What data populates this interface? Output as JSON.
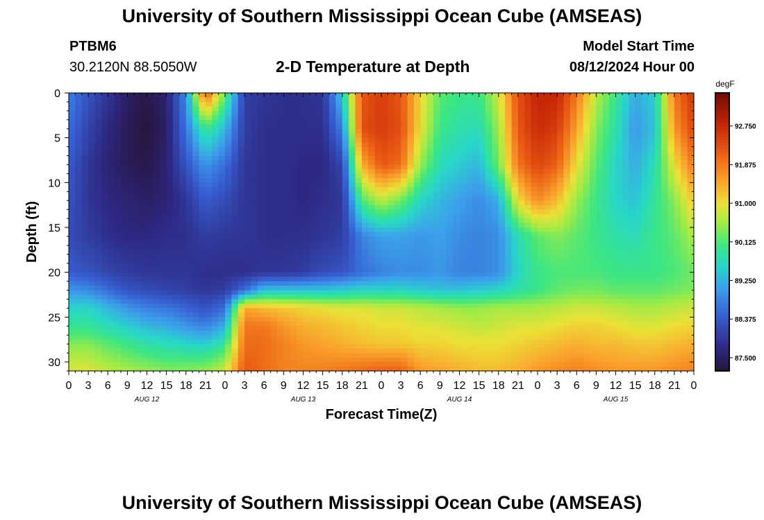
{
  "header": {
    "title": "University of Southern Mississippi Ocean Cube (AMSEAS)",
    "station": "PTBM6",
    "coords": "30.2120N  88.5050W",
    "chart_title": "2-D Temperature at Depth",
    "model_start_label": "Model Start Time",
    "model_start_value": "08/12/2024 Hour 00"
  },
  "footer": {
    "title": "University of Southern Mississippi Ocean Cube (AMSEAS)"
  },
  "chart_data": {
    "type": "heatmap",
    "title": "2-D Temperature at Depth",
    "xlabel": "Forecast Time(Z)",
    "ylabel": "Depth (ft)",
    "x_hours_range": [
      0,
      96
    ],
    "x_tick_step_hours": 3,
    "x_tick_labels": [
      "0",
      "3",
      "6",
      "9",
      "12",
      "15",
      "18",
      "21",
      "0",
      "3",
      "6",
      "9",
      "12",
      "15",
      "18",
      "21",
      "0",
      "3",
      "6",
      "9",
      "12",
      "15",
      "18",
      "21",
      "0",
      "3",
      "6",
      "9",
      "12",
      "15",
      "18",
      "21",
      "0"
    ],
    "day_labels": [
      {
        "label": "AUG 12",
        "hour": 12
      },
      {
        "label": "AUG 13",
        "hour": 36
      },
      {
        "label": "AUG 14",
        "hour": 60
      },
      {
        "label": "AUG 15",
        "hour": 84
      }
    ],
    "y_range_ft": [
      0,
      31
    ],
    "y_ticks": [
      0,
      5,
      10,
      15,
      20,
      25,
      30
    ],
    "colorbar": {
      "unit": "degF",
      "min": 87.2,
      "max": 93.5,
      "ticks": [
        "87.500",
        "88.375",
        "89.250",
        "90.125",
        "91.000",
        "91.875",
        "92.750"
      ],
      "tick_values": [
        87.5,
        88.375,
        89.25,
        90.125,
        91.0,
        91.875,
        92.75
      ]
    },
    "sample_hours": [
      0,
      3,
      6,
      9,
      12,
      15,
      18,
      21,
      24,
      27,
      30,
      33,
      36,
      39,
      42,
      45,
      48,
      51,
      54,
      57,
      60,
      63,
      66,
      69,
      72,
      75,
      78,
      81,
      84,
      87,
      90,
      93,
      96
    ],
    "sample_depths_ft": [
      0,
      4,
      8,
      12,
      16,
      20,
      22,
      24,
      26,
      28,
      31
    ],
    "temperature_degF": [
      [
        88.8,
        88.6,
        88.4,
        88.3,
        88.2,
        88.4,
        89.0,
        89.6,
        89.9,
        90.4,
        90.9
      ],
      [
        88.3,
        88.1,
        87.9,
        87.9,
        88.0,
        88.3,
        88.9,
        89.6,
        89.9,
        90.4,
        90.9
      ],
      [
        87.9,
        87.7,
        87.6,
        87.7,
        87.8,
        88.1,
        88.6,
        89.3,
        89.7,
        90.2,
        90.7
      ],
      [
        87.5,
        87.4,
        87.4,
        87.6,
        87.7,
        88.0,
        88.3,
        89.0,
        89.5,
        90.0,
        90.6
      ],
      [
        87.3,
        87.2,
        87.3,
        87.5,
        87.7,
        87.9,
        88.2,
        88.8,
        89.3,
        89.8,
        90.5
      ],
      [
        87.6,
        87.5,
        87.6,
        87.6,
        87.8,
        87.9,
        88.1,
        88.7,
        89.2,
        89.7,
        90.4
      ],
      [
        88.9,
        88.7,
        88.3,
        87.9,
        87.8,
        87.9,
        88.0,
        88.5,
        89.0,
        89.6,
        90.4
      ],
      [
        92.2,
        90.0,
        89.0,
        88.4,
        88.0,
        87.8,
        87.9,
        88.3,
        88.8,
        89.5,
        90.5
      ],
      [
        90.3,
        89.3,
        88.6,
        88.2,
        87.9,
        87.8,
        88.0,
        88.6,
        89.2,
        89.9,
        90.8
      ],
      [
        88.0,
        88.0,
        87.9,
        87.9,
        87.9,
        87.8,
        88.6,
        91.5,
        91.9,
        92.0,
        92.2
      ],
      [
        87.9,
        87.8,
        87.8,
        87.8,
        87.8,
        87.9,
        89.4,
        91.3,
        91.9,
        92.0,
        92.0
      ],
      [
        87.8,
        87.8,
        87.8,
        87.8,
        87.8,
        87.9,
        89.4,
        91.2,
        91.6,
        91.8,
        91.8
      ],
      [
        87.8,
        87.8,
        87.7,
        87.7,
        87.8,
        88.0,
        89.4,
        91.1,
        91.4,
        91.6,
        91.8
      ],
      [
        87.9,
        87.8,
        87.7,
        87.8,
        87.9,
        88.2,
        89.4,
        91.0,
        91.3,
        91.5,
        91.8
      ],
      [
        89.5,
        88.8,
        88.1,
        87.9,
        88.0,
        88.3,
        89.5,
        90.9,
        91.2,
        91.4,
        91.9
      ],
      [
        92.2,
        92.3,
        91.4,
        90.1,
        88.8,
        88.6,
        89.6,
        90.9,
        91.1,
        91.3,
        92.0
      ],
      [
        92.5,
        92.5,
        92.2,
        90.7,
        89.1,
        88.8,
        89.6,
        90.8,
        91.0,
        91.2,
        92.1
      ],
      [
        92.2,
        92.3,
        92.0,
        90.3,
        89.1,
        88.9,
        89.6,
        90.8,
        91.0,
        91.2,
        92.1
      ],
      [
        91.1,
        91.0,
        90.5,
        89.6,
        89.0,
        88.9,
        89.5,
        90.7,
        90.9,
        91.1,
        91.6
      ],
      [
        90.2,
        90.0,
        89.7,
        89.3,
        89.1,
        89.0,
        89.4,
        90.6,
        90.9,
        91.1,
        91.5
      ],
      [
        90.0,
        89.8,
        89.5,
        89.1,
        88.9,
        88.8,
        89.4,
        90.5,
        90.8,
        91.0,
        91.4
      ],
      [
        90.0,
        89.7,
        89.3,
        88.9,
        88.8,
        88.8,
        89.5,
        90.5,
        90.7,
        91.0,
        91.3
      ],
      [
        90.8,
        90.5,
        90.3,
        89.2,
        88.9,
        88.9,
        89.6,
        90.6,
        90.8,
        91.0,
        91.3
      ],
      [
        92.3,
        92.2,
        91.9,
        91.0,
        89.7,
        89.6,
        89.8,
        90.6,
        90.9,
        91.1,
        91.4
      ],
      [
        92.8,
        92.7,
        92.4,
        91.7,
        90.2,
        90.0,
        90.0,
        90.6,
        90.9,
        91.2,
        91.6
      ],
      [
        92.8,
        92.5,
        92.1,
        91.3,
        90.4,
        90.1,
        90.2,
        90.7,
        91.0,
        91.3,
        91.7
      ],
      [
        91.9,
        91.5,
        91.0,
        90.5,
        90.2,
        90.1,
        90.3,
        90.8,
        91.1,
        91.4,
        91.8
      ],
      [
        90.7,
        90.4,
        90.2,
        90.0,
        90.0,
        90.1,
        90.3,
        90.8,
        91.1,
        91.3,
        91.7
      ],
      [
        90.0,
        89.8,
        89.6,
        89.6,
        89.8,
        90.0,
        90.2,
        90.7,
        91.0,
        91.3,
        91.6
      ],
      [
        89.2,
        89.0,
        89.2,
        89.4,
        89.7,
        90.0,
        90.2,
        90.6,
        90.9,
        91.2,
        91.6
      ],
      [
        89.5,
        89.4,
        89.7,
        89.9,
        90.0,
        90.0,
        90.2,
        90.6,
        90.9,
        91.2,
        91.6
      ],
      [
        91.9,
        91.6,
        91.0,
        90.4,
        90.2,
        90.1,
        90.3,
        90.7,
        91.0,
        91.3,
        91.7
      ],
      [
        92.6,
        92.4,
        91.9,
        91.2,
        90.6,
        90.3,
        90.4,
        90.8,
        91.1,
        91.4,
        91.8
      ]
    ]
  }
}
